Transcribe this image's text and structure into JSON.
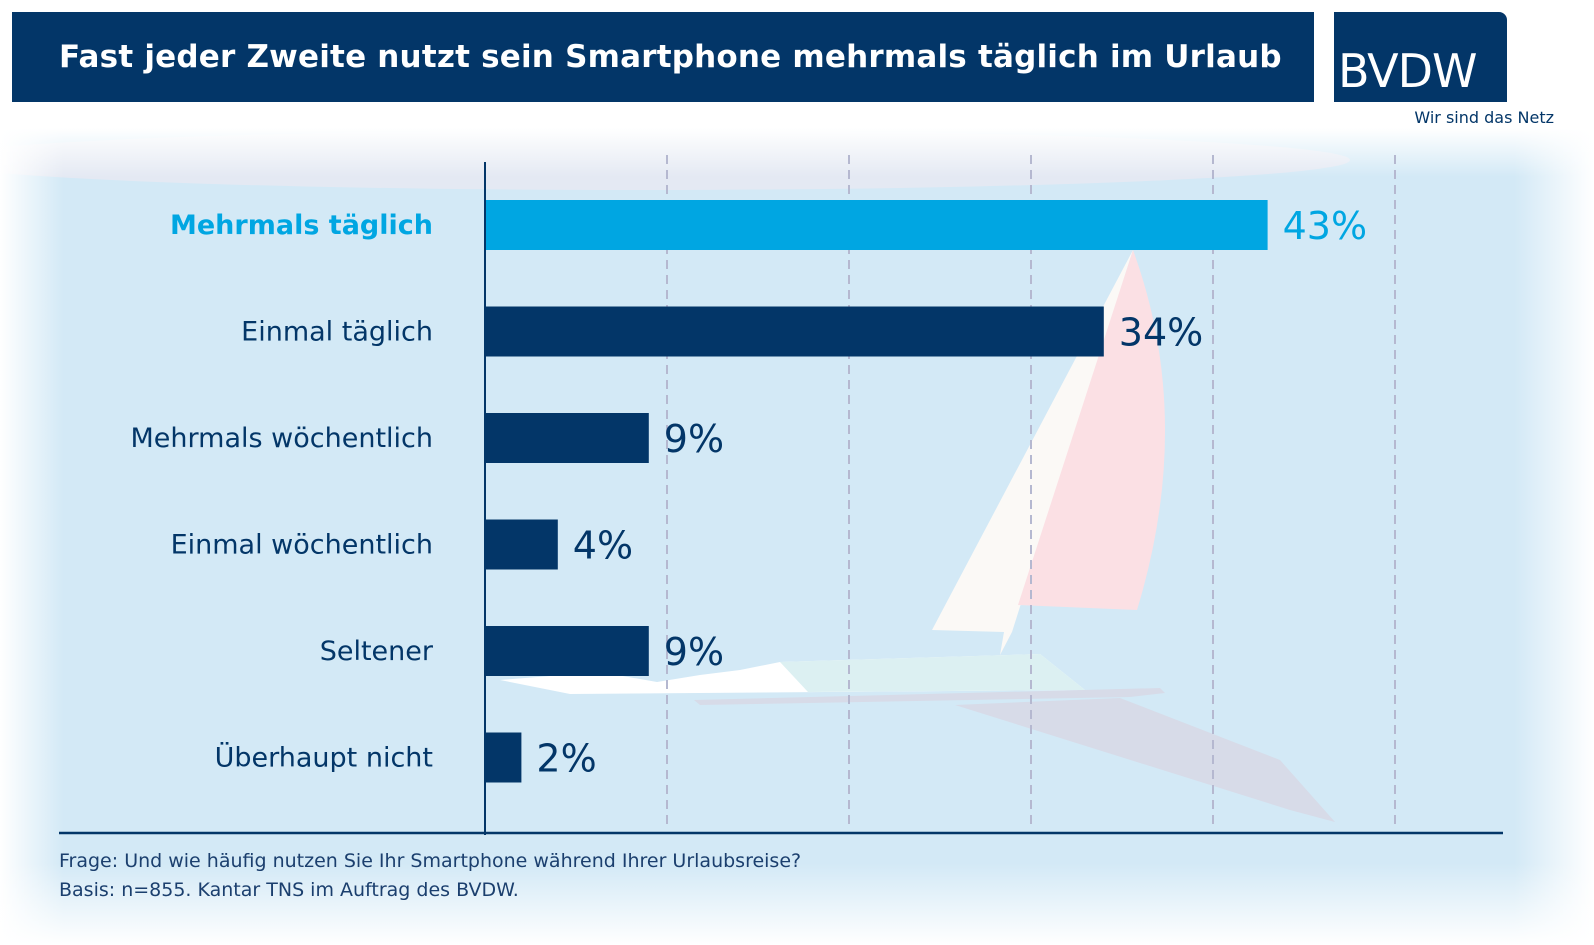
{
  "header": {
    "title": "Fast jeder Zweite nutzt sein Smartphone mehrmals täglich im Urlaub",
    "logo": "BVDW",
    "tagline": "Wir sind das Netz"
  },
  "colors": {
    "brand_dark": "#033668",
    "highlight": "#00a6e2",
    "background": "#d3e9f6",
    "gridline": "#b5b8d0"
  },
  "chart_data": {
    "type": "bar",
    "orientation": "horizontal",
    "title": "Fast jeder Zweite nutzt sein Smartphone mehrmals täglich im Urlaub",
    "categories": [
      "Mehrmals täglich",
      "Einmal täglich",
      "Mehrmals wöchentlich",
      "Einmal wöchentlich",
      "Seltener",
      "Überhaupt nicht"
    ],
    "values": [
      43,
      34,
      9,
      4,
      9,
      2
    ],
    "value_labels": [
      "43%",
      "34%",
      "9%",
      "4%",
      "9%",
      "2%"
    ],
    "highlighted_index": 0,
    "unit": "%",
    "xlabel": "",
    "ylabel": "",
    "xlim": [
      0,
      50
    ],
    "grid_step": 10,
    "grid": true,
    "legend": "none"
  },
  "footnotes": {
    "question": "Frage: Und wie häufig nutzen Sie Ihr Smartphone während Ihrer Urlaubsreise?",
    "basis": "Basis: n=855. Kantar TNS im Auftrag des BVDW."
  }
}
